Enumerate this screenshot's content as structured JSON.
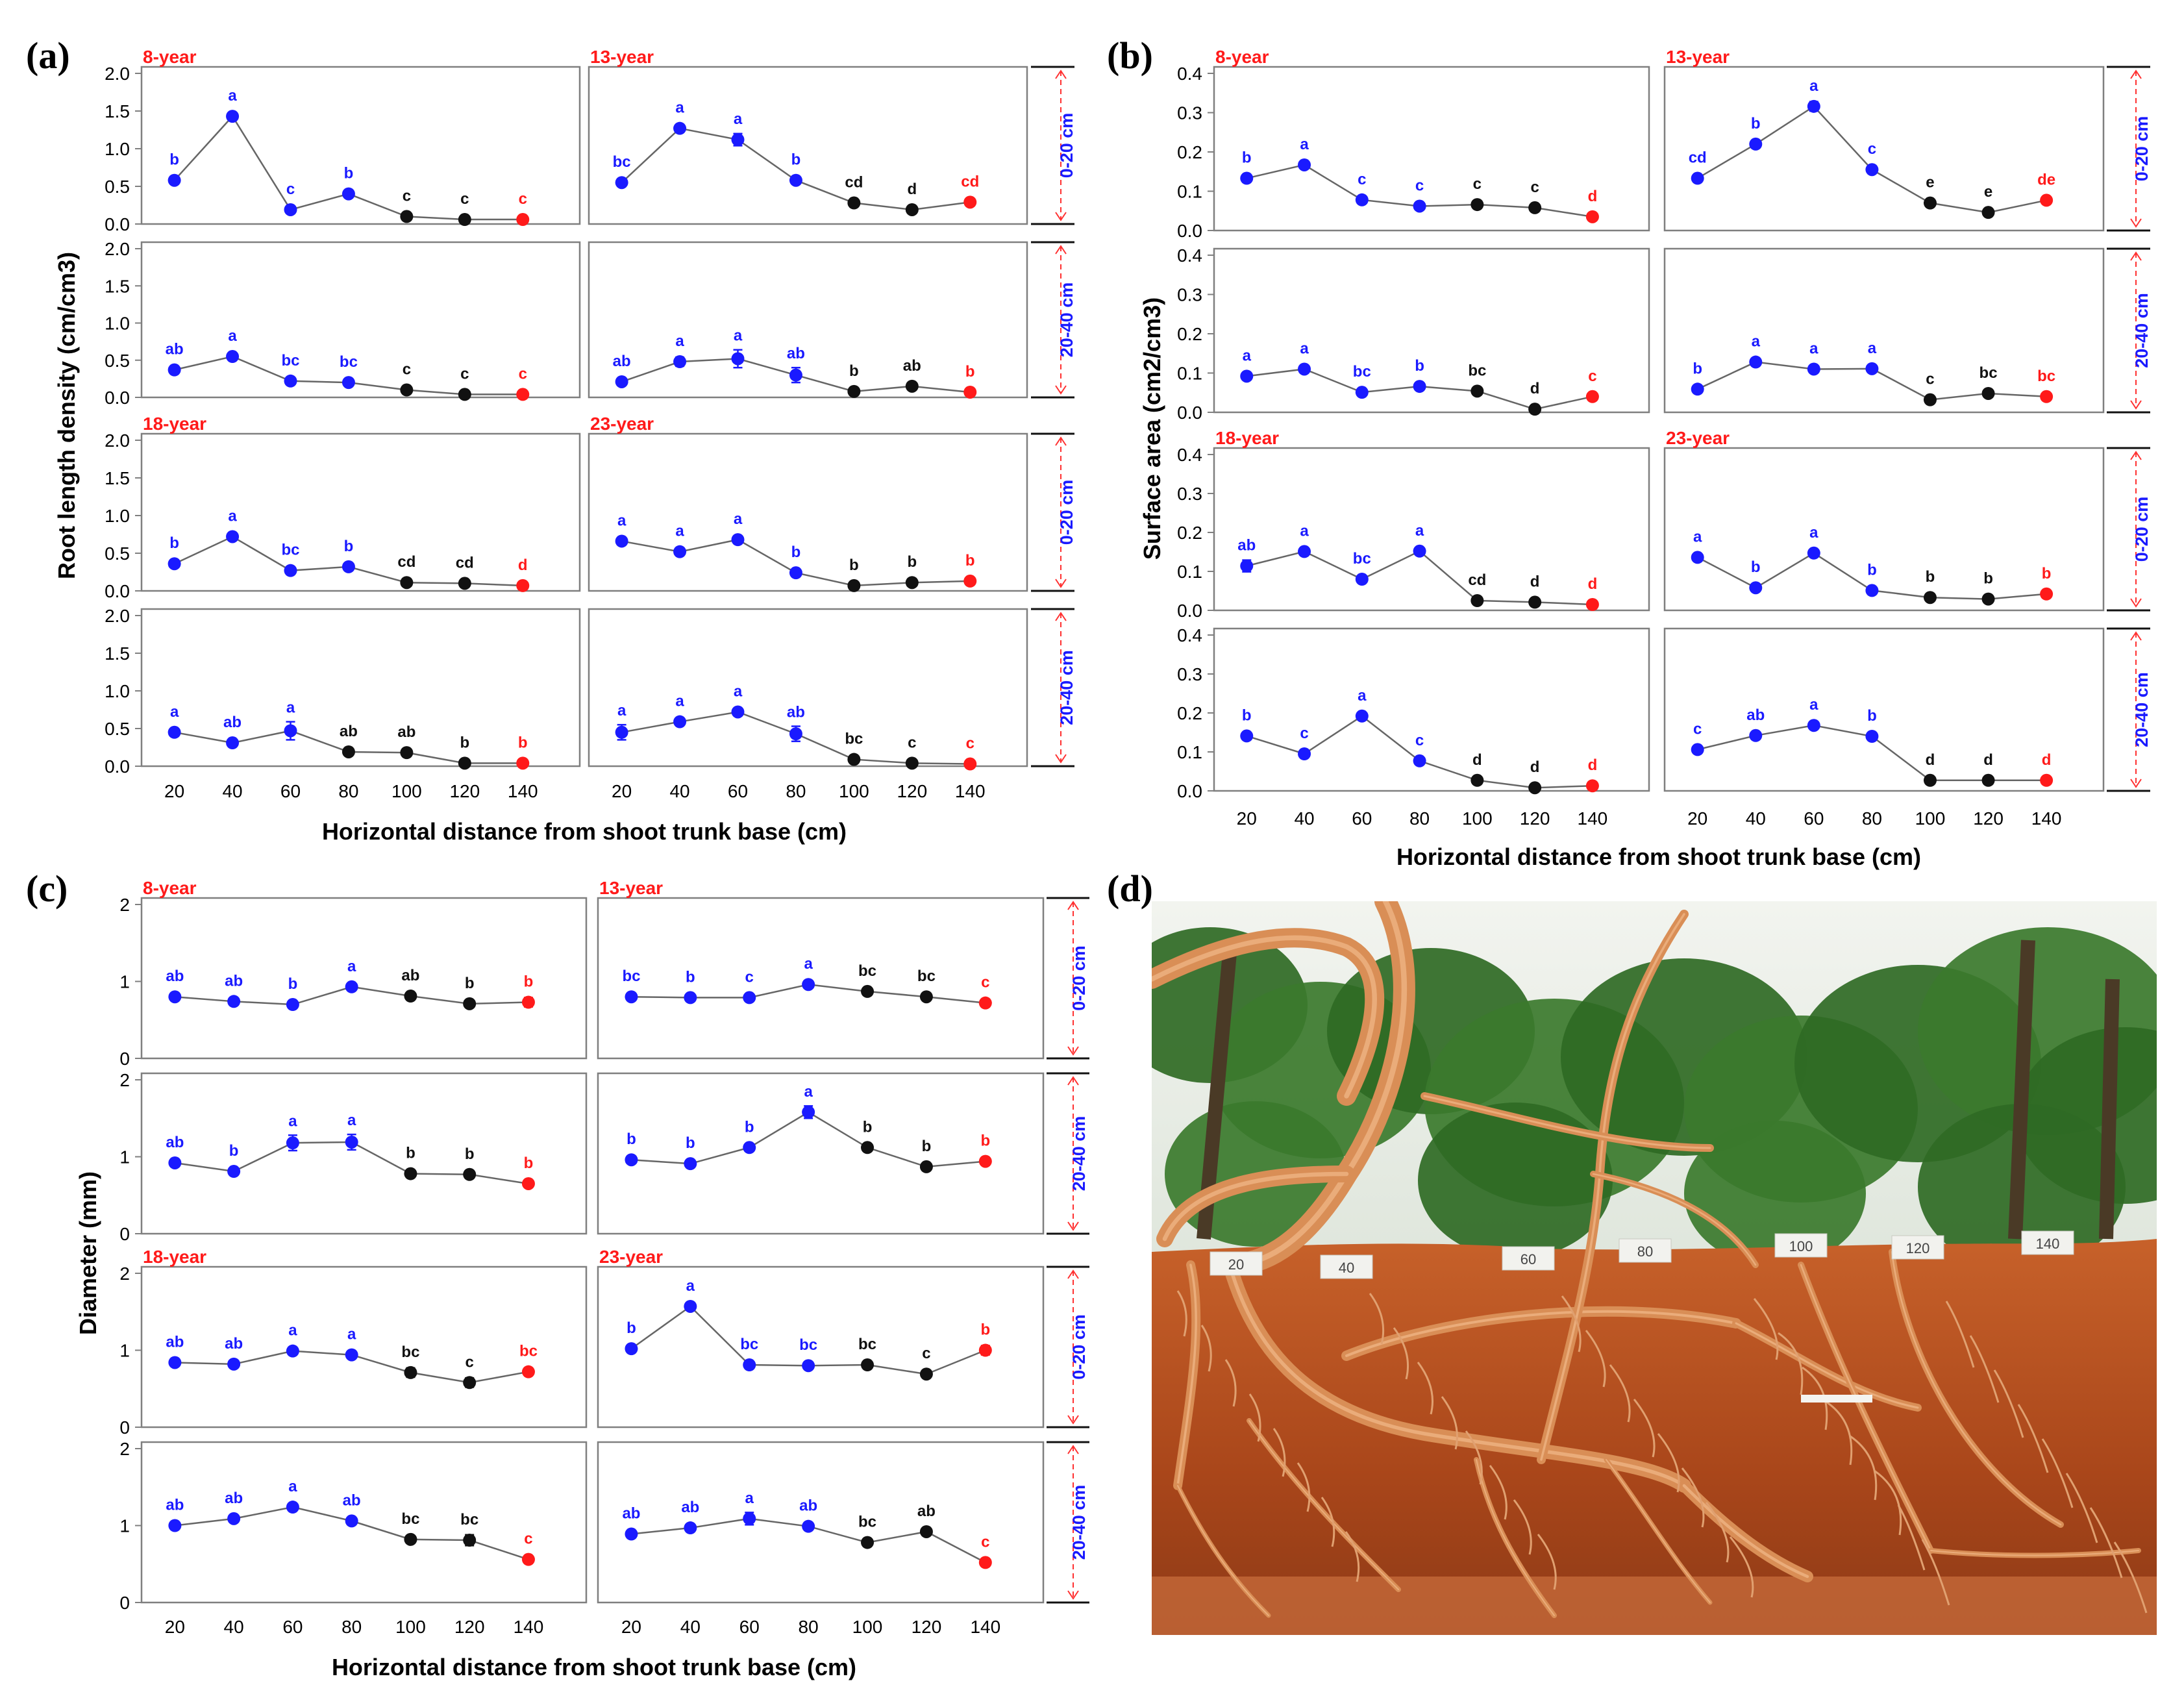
{
  "figure": {
    "x": [
      20,
      40,
      60,
      80,
      100,
      120,
      140
    ],
    "sig_colors": {
      "high": "#1a1aff",
      "mid": "#111111",
      "low": "#ff1a1a"
    },
    "axis_color": "#7f7f7f",
    "x_label": "Horizontal distance from shoot trunk base (cm)",
    "depth_labels": [
      "0-20 cm",
      "20-40 cm",
      "0-20 cm",
      "20-40 cm"
    ],
    "ages": [
      [
        "8-year",
        "13-year"
      ],
      [
        "18-year",
        "23-year"
      ]
    ]
  },
  "chart_data": [
    {
      "panel": "(a)",
      "type": "line",
      "ylabel": "Root length density (cm/cm3)",
      "ylim": [
        0,
        2.0
      ],
      "yticks": [
        "0.0",
        "0.5",
        "1.0",
        "1.5",
        "2.0"
      ],
      "subplots": [
        {
          "age": "8-year",
          "depth": "0-20 cm",
          "values": [
            0.58,
            1.43,
            0.19,
            0.4,
            0.1,
            0.06,
            0.06
          ],
          "err": [
            0.03,
            0.05,
            0.02,
            0.03,
            0.01,
            0.01,
            0.01
          ],
          "letters": [
            "b",
            "a",
            "c",
            "b",
            "c",
            "c",
            "c"
          ],
          "colors": [
            "high",
            "high",
            "high",
            "high",
            "mid",
            "mid",
            "low"
          ]
        },
        {
          "age": "13-year",
          "depth": "0-20 cm",
          "values": [
            0.55,
            1.27,
            1.12,
            0.58,
            0.28,
            0.19,
            0.29
          ],
          "err": [
            0.03,
            0.04,
            0.08,
            0.05,
            0.02,
            0.02,
            0.02
          ],
          "letters": [
            "bc",
            "a",
            "a",
            "b",
            "cd",
            "d",
            "cd"
          ],
          "colors": [
            "high",
            "high",
            "high",
            "high",
            "mid",
            "mid",
            "low"
          ]
        },
        {
          "age": "8-year",
          "depth": "20-40 cm",
          "values": [
            0.37,
            0.55,
            0.22,
            0.2,
            0.1,
            0.04,
            0.04
          ],
          "err": [
            0.03,
            0.04,
            0.02,
            0.02,
            0.01,
            0.01,
            0.01
          ],
          "letters": [
            "ab",
            "a",
            "bc",
            "bc",
            "c",
            "c",
            "c"
          ],
          "colors": [
            "high",
            "high",
            "high",
            "high",
            "mid",
            "mid",
            "low"
          ]
        },
        {
          "age": "13-year",
          "depth": "20-40 cm",
          "values": [
            0.21,
            0.48,
            0.52,
            0.3,
            0.08,
            0.15,
            0.07
          ],
          "err": [
            0.02,
            0.06,
            0.12,
            0.1,
            0.01,
            0.02,
            0.01
          ],
          "letters": [
            "ab",
            "a",
            "a",
            "ab",
            "b",
            "ab",
            "b"
          ],
          "colors": [
            "high",
            "high",
            "high",
            "high",
            "mid",
            "mid",
            "low"
          ]
        },
        {
          "age": "18-year",
          "depth": "0-20 cm",
          "values": [
            0.36,
            0.72,
            0.27,
            0.32,
            0.11,
            0.1,
            0.07
          ],
          "err": [
            0.03,
            0.05,
            0.02,
            0.02,
            0.01,
            0.01,
            0.01
          ],
          "letters": [
            "b",
            "a",
            "bc",
            "b",
            "cd",
            "cd",
            "d"
          ],
          "colors": [
            "high",
            "high",
            "high",
            "high",
            "mid",
            "mid",
            "low"
          ]
        },
        {
          "age": "23-year",
          "depth": "0-20 cm",
          "values": [
            0.66,
            0.52,
            0.68,
            0.24,
            0.07,
            0.11,
            0.13
          ],
          "err": [
            0.03,
            0.05,
            0.03,
            0.05,
            0.01,
            0.01,
            0.01
          ],
          "letters": [
            "a",
            "a",
            "a",
            "b",
            "b",
            "b",
            "b"
          ],
          "colors": [
            "high",
            "high",
            "high",
            "high",
            "mid",
            "mid",
            "low"
          ]
        },
        {
          "age": "18-year",
          "depth": "20-40 cm",
          "values": [
            0.45,
            0.31,
            0.47,
            0.19,
            0.18,
            0.04,
            0.04
          ],
          "err": [
            0.03,
            0.03,
            0.12,
            0.02,
            0.02,
            0.01,
            0.01
          ],
          "letters": [
            "a",
            "ab",
            "a",
            "ab",
            "ab",
            "b",
            "b"
          ],
          "colors": [
            "high",
            "high",
            "high",
            "mid",
            "mid",
            "mid",
            "low"
          ]
        },
        {
          "age": "23-year",
          "depth": "20-40 cm",
          "values": [
            0.45,
            0.59,
            0.72,
            0.43,
            0.09,
            0.04,
            0.03
          ],
          "err": [
            0.1,
            0.03,
            0.03,
            0.1,
            0.01,
            0.01,
            0.01
          ],
          "letters": [
            "a",
            "a",
            "a",
            "ab",
            "bc",
            "c",
            "c"
          ],
          "colors": [
            "high",
            "high",
            "high",
            "high",
            "mid",
            "mid",
            "low"
          ]
        }
      ]
    },
    {
      "panel": "(b)",
      "type": "line",
      "ylabel": "Surface area (cm2/cm3)",
      "ylim": [
        0,
        0.4
      ],
      "yticks": [
        "0.0",
        "0.1",
        "0.2",
        "0.3",
        "0.4"
      ],
      "subplots": [
        {
          "age": "8-year",
          "depth": "0-20 cm",
          "values": [
            0.133,
            0.167,
            0.078,
            0.062,
            0.066,
            0.058,
            0.035
          ],
          "err": [
            0.006,
            0.008,
            0.004,
            0.004,
            0.004,
            0.004,
            0.003
          ],
          "letters": [
            "b",
            "a",
            "c",
            "c",
            "c",
            "c",
            "d"
          ],
          "colors": [
            "high",
            "high",
            "high",
            "high",
            "mid",
            "mid",
            "low"
          ]
        },
        {
          "age": "13-year",
          "depth": "0-20 cm",
          "values": [
            0.133,
            0.22,
            0.316,
            0.155,
            0.07,
            0.046,
            0.077
          ],
          "err": [
            0.006,
            0.01,
            0.012,
            0.01,
            0.004,
            0.004,
            0.005
          ],
          "letters": [
            "cd",
            "b",
            "a",
            "c",
            "e",
            "e",
            "de"
          ],
          "colors": [
            "high",
            "high",
            "high",
            "high",
            "mid",
            "mid",
            "low"
          ]
        },
        {
          "age": "8-year",
          "depth": "20-40 cm",
          "values": [
            0.092,
            0.11,
            0.051,
            0.066,
            0.054,
            0.008,
            0.04
          ],
          "err": [
            0.005,
            0.006,
            0.004,
            0.005,
            0.004,
            0.002,
            0.003
          ],
          "letters": [
            "a",
            "a",
            "bc",
            "b",
            "bc",
            "d",
            "c"
          ],
          "colors": [
            "high",
            "high",
            "high",
            "high",
            "mid",
            "mid",
            "low"
          ]
        },
        {
          "age": "13-year",
          "depth": "20-40 cm",
          "values": [
            0.059,
            0.128,
            0.11,
            0.111,
            0.032,
            0.048,
            0.04
          ],
          "err": [
            0.004,
            0.006,
            0.005,
            0.005,
            0.003,
            0.003,
            0.003
          ],
          "letters": [
            "b",
            "a",
            "a",
            "a",
            "c",
            "bc",
            "bc"
          ],
          "colors": [
            "high",
            "high",
            "high",
            "high",
            "mid",
            "mid",
            "low"
          ]
        },
        {
          "age": "18-year",
          "depth": "0-20 cm",
          "values": [
            0.114,
            0.151,
            0.08,
            0.152,
            0.025,
            0.021,
            0.015
          ],
          "err": [
            0.015,
            0.01,
            0.005,
            0.008,
            0.003,
            0.003,
            0.002
          ],
          "letters": [
            "ab",
            "a",
            "bc",
            "a",
            "cd",
            "d",
            "d"
          ],
          "colors": [
            "high",
            "high",
            "high",
            "high",
            "mid",
            "mid",
            "low"
          ]
        },
        {
          "age": "23-year",
          "depth": "0-20 cm",
          "values": [
            0.136,
            0.058,
            0.147,
            0.051,
            0.033,
            0.029,
            0.042
          ],
          "err": [
            0.006,
            0.004,
            0.007,
            0.004,
            0.003,
            0.003,
            0.003
          ],
          "letters": [
            "a",
            "b",
            "a",
            "b",
            "b",
            "b",
            "b"
          ],
          "colors": [
            "high",
            "high",
            "high",
            "high",
            "mid",
            "mid",
            "low"
          ]
        },
        {
          "age": "18-year",
          "depth": "20-40 cm",
          "values": [
            0.141,
            0.095,
            0.192,
            0.077,
            0.027,
            0.008,
            0.013
          ],
          "err": [
            0.006,
            0.005,
            0.008,
            0.005,
            0.003,
            0.002,
            0.002
          ],
          "letters": [
            "b",
            "c",
            "a",
            "c",
            "d",
            "d",
            "d"
          ],
          "colors": [
            "high",
            "high",
            "high",
            "high",
            "mid",
            "mid",
            "low"
          ]
        },
        {
          "age": "23-year",
          "depth": "20-40 cm",
          "values": [
            0.106,
            0.142,
            0.168,
            0.14,
            0.027,
            0.027,
            0.027
          ],
          "err": [
            0.005,
            0.006,
            0.007,
            0.006,
            0.003,
            0.003,
            0.003
          ],
          "letters": [
            "c",
            "ab",
            "a",
            "b",
            "d",
            "d",
            "d"
          ],
          "colors": [
            "high",
            "high",
            "high",
            "high",
            "mid",
            "mid",
            "low"
          ]
        }
      ]
    },
    {
      "panel": "(c)",
      "type": "line",
      "ylabel": "Diameter (mm)",
      "ylim": [
        0,
        2
      ],
      "yticks": [
        "0",
        "1",
        "2"
      ],
      "subplots": [
        {
          "age": "8-year",
          "depth": "0-20 cm",
          "values": [
            0.8,
            0.74,
            0.7,
            0.93,
            0.81,
            0.71,
            0.73
          ],
          "err": [
            0.03,
            0.03,
            0.03,
            0.04,
            0.03,
            0.03,
            0.06
          ],
          "letters": [
            "ab",
            "ab",
            "b",
            "a",
            "ab",
            "b",
            "b"
          ],
          "colors": [
            "high",
            "high",
            "high",
            "high",
            "mid",
            "mid",
            "low"
          ]
        },
        {
          "age": "13-year",
          "depth": "0-20 cm",
          "values": [
            0.8,
            0.79,
            0.79,
            0.96,
            0.87,
            0.8,
            0.72
          ],
          "err": [
            0.03,
            0.03,
            0.03,
            0.03,
            0.03,
            0.03,
            0.03
          ],
          "letters": [
            "bc",
            "b",
            "c",
            "a",
            "bc",
            "bc",
            "c"
          ],
          "colors": [
            "high",
            "high",
            "high",
            "high",
            "mid",
            "mid",
            "low"
          ]
        },
        {
          "age": "8-year",
          "depth": "20-40 cm",
          "values": [
            0.92,
            0.81,
            1.18,
            1.19,
            0.78,
            0.77,
            0.65
          ],
          "err": [
            0.04,
            0.03,
            0.1,
            0.1,
            0.03,
            0.03,
            0.03
          ],
          "letters": [
            "ab",
            "b",
            "a",
            "a",
            "b",
            "b",
            "b"
          ],
          "colors": [
            "high",
            "high",
            "high",
            "high",
            "mid",
            "mid",
            "low"
          ]
        },
        {
          "age": "13-year",
          "depth": "20-40 cm",
          "values": [
            0.96,
            0.91,
            1.12,
            1.58,
            1.12,
            0.87,
            0.94
          ],
          "err": [
            0.04,
            0.03,
            0.04,
            0.08,
            0.04,
            0.03,
            0.03
          ],
          "letters": [
            "b",
            "b",
            "b",
            "a",
            "b",
            "b",
            "b"
          ],
          "colors": [
            "high",
            "high",
            "high",
            "high",
            "mid",
            "mid",
            "low"
          ]
        },
        {
          "age": "18-year",
          "depth": "0-20 cm",
          "values": [
            0.84,
            0.82,
            0.99,
            0.94,
            0.71,
            0.58,
            0.72
          ],
          "err": [
            0.03,
            0.04,
            0.04,
            0.04,
            0.06,
            0.06,
            0.04
          ],
          "letters": [
            "ab",
            "ab",
            "a",
            "a",
            "bc",
            "c",
            "bc"
          ],
          "colors": [
            "high",
            "high",
            "high",
            "high",
            "mid",
            "mid",
            "low"
          ]
        },
        {
          "age": "23-year",
          "depth": "0-20 cm",
          "values": [
            1.02,
            1.57,
            0.81,
            0.8,
            0.81,
            0.69,
            1.0
          ],
          "err": [
            0.05,
            0.05,
            0.03,
            0.03,
            0.03,
            0.03,
            0.06
          ],
          "letters": [
            "b",
            "a",
            "bc",
            "bc",
            "bc",
            "c",
            "b"
          ],
          "colors": [
            "high",
            "high",
            "high",
            "high",
            "mid",
            "mid",
            "low"
          ]
        },
        {
          "age": "18-year",
          "depth": "20-40 cm",
          "values": [
            1.0,
            1.09,
            1.24,
            1.06,
            0.82,
            0.81,
            0.56
          ],
          "err": [
            0.03,
            0.04,
            0.04,
            0.04,
            0.04,
            0.07,
            0.05
          ],
          "letters": [
            "ab",
            "ab",
            "a",
            "ab",
            "bc",
            "bc",
            "c"
          ],
          "colors": [
            "high",
            "high",
            "high",
            "high",
            "mid",
            "mid",
            "low"
          ]
        },
        {
          "age": "23-year",
          "depth": "20-40 cm",
          "values": [
            0.89,
            0.97,
            1.09,
            0.99,
            0.78,
            0.92,
            0.52
          ],
          "err": [
            0.03,
            0.03,
            0.08,
            0.04,
            0.03,
            0.05,
            0.03
          ],
          "letters": [
            "ab",
            "ab",
            "a",
            "ab",
            "bc",
            "ab",
            "c"
          ],
          "colors": [
            "high",
            "high",
            "high",
            "high",
            "mid",
            "mid",
            "low"
          ]
        }
      ]
    }
  ],
  "photo": {
    "panel": "(d)",
    "stake_labels": [
      "20",
      "40",
      "60",
      "80",
      "100",
      "120",
      "140"
    ],
    "colors": {
      "soil": "#b8521f",
      "root": "#d98e56",
      "sky": "#e8eee6",
      "foliage": "#2f6a24"
    }
  }
}
